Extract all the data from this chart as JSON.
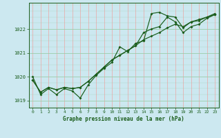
{
  "xlabel": "Graphe pression niveau de la mer (hPa)",
  "xlim": [
    -0.5,
    23.5
  ],
  "ylim": [
    1018.7,
    1023.1
  ],
  "yticks": [
    1019,
    1020,
    1021,
    1022
  ],
  "xticks": [
    0,
    1,
    2,
    3,
    4,
    5,
    6,
    7,
    8,
    9,
    10,
    11,
    12,
    13,
    14,
    15,
    16,
    17,
    18,
    19,
    20,
    21,
    22,
    23
  ],
  "bg_color": "#cce8f0",
  "grid_major_color": "#99ccaa",
  "grid_minor_color": "#e8b0b0",
  "line_color": "#1a5c1a",
  "series1_x": [
    0,
    1,
    2,
    3,
    4,
    5,
    6,
    7,
    8,
    9,
    10,
    11,
    12,
    13,
    14,
    15,
    16,
    17,
    18,
    19,
    20,
    21,
    22,
    23
  ],
  "series1_y": [
    1020.0,
    1019.25,
    1019.5,
    1019.25,
    1019.5,
    1019.4,
    1019.1,
    1019.65,
    1020.05,
    1020.35,
    1020.6,
    1021.25,
    1021.05,
    1021.4,
    1021.5,
    1022.65,
    1022.7,
    1022.55,
    1022.5,
    1022.05,
    1022.3,
    1022.4,
    1022.5,
    1022.65
  ],
  "series2_x": [
    0,
    1,
    2,
    3,
    4,
    5,
    6,
    7,
    8,
    9,
    10,
    11,
    12,
    13,
    14,
    15,
    16,
    17,
    18,
    19,
    20,
    21,
    22,
    23
  ],
  "series2_y": [
    1019.85,
    1019.35,
    1019.55,
    1019.45,
    1019.55,
    1019.5,
    1019.55,
    1019.8,
    1020.1,
    1020.4,
    1020.7,
    1020.9,
    1021.1,
    1021.3,
    1021.55,
    1021.7,
    1021.85,
    1022.05,
    1022.2,
    1022.1,
    1022.3,
    1022.35,
    1022.5,
    1022.6
  ],
  "series3_x": [
    0,
    1,
    2,
    3,
    4,
    5,
    6,
    7,
    8,
    9,
    10,
    11,
    12,
    13,
    14,
    15,
    16,
    17,
    18,
    19,
    20,
    21,
    22,
    23
  ],
  "series3_y": [
    1019.85,
    1019.35,
    1019.55,
    1019.45,
    1019.55,
    1019.5,
    1019.55,
    1019.8,
    1020.1,
    1020.4,
    1020.7,
    1020.9,
    1021.1,
    1021.3,
    1021.85,
    1022.0,
    1022.1,
    1022.5,
    1022.3,
    1021.85,
    1022.1,
    1022.2,
    1022.45,
    1022.6
  ]
}
